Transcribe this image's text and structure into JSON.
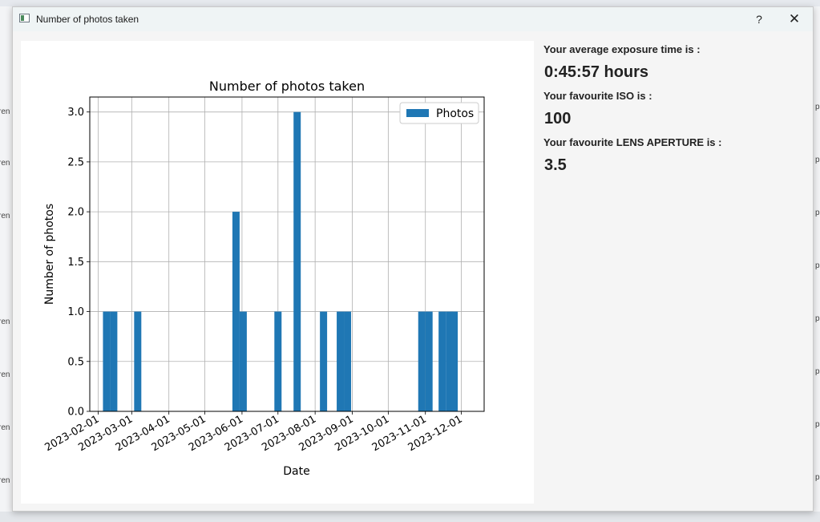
{
  "window": {
    "title": "Number of photos taken",
    "help_label": "?",
    "close_label": "✕"
  },
  "stats": {
    "exposure_label": "Your average exposure time is :",
    "exposure_value": "0:45:57 hours",
    "iso_label": "Your favourite ISO is :",
    "iso_value": "100",
    "aperture_label": "Your favourite LENS APERTURE is :",
    "aperture_value": "3.5"
  },
  "chart_data": {
    "type": "bar",
    "title": "Number of photos taken",
    "xlabel": "Date",
    "ylabel": "Number of photos",
    "legend": {
      "label": "Photos",
      "placement": "top-right"
    },
    "grid": true,
    "bar_color": "#1f77b4",
    "x_ticks": [
      "2023-02-01",
      "2023-03-01",
      "2023-04-01",
      "2023-05-01",
      "2023-06-01",
      "2023-07-01",
      "2023-08-01",
      "2023-09-01",
      "2023-10-01",
      "2023-11-01",
      "2023-12-01"
    ],
    "y_ticks": [
      "0.0",
      "0.5",
      "1.0",
      "1.5",
      "2.0",
      "2.5",
      "3.0"
    ],
    "ylim": [
      0,
      3.15
    ],
    "xlim": [
      "2023-01-25",
      "2023-12-20"
    ],
    "bars": [
      {
        "date": "2023-02-08",
        "value": 1
      },
      {
        "date": "2023-02-14",
        "value": 1
      },
      {
        "date": "2023-03-06",
        "value": 1
      },
      {
        "date": "2023-05-27",
        "value": 2
      },
      {
        "date": "2023-06-02",
        "value": 1
      },
      {
        "date": "2023-07-01",
        "value": 1
      },
      {
        "date": "2023-07-17",
        "value": 3
      },
      {
        "date": "2023-08-08",
        "value": 1
      },
      {
        "date": "2023-08-22",
        "value": 1
      },
      {
        "date": "2023-08-28",
        "value": 1
      },
      {
        "date": "2023-10-29",
        "value": 1
      },
      {
        "date": "2023-11-04",
        "value": 1
      },
      {
        "date": "2023-11-15",
        "value": 1
      },
      {
        "date": "2023-11-21",
        "value": 1
      },
      {
        "date": "2023-11-25",
        "value": 1
      }
    ]
  }
}
